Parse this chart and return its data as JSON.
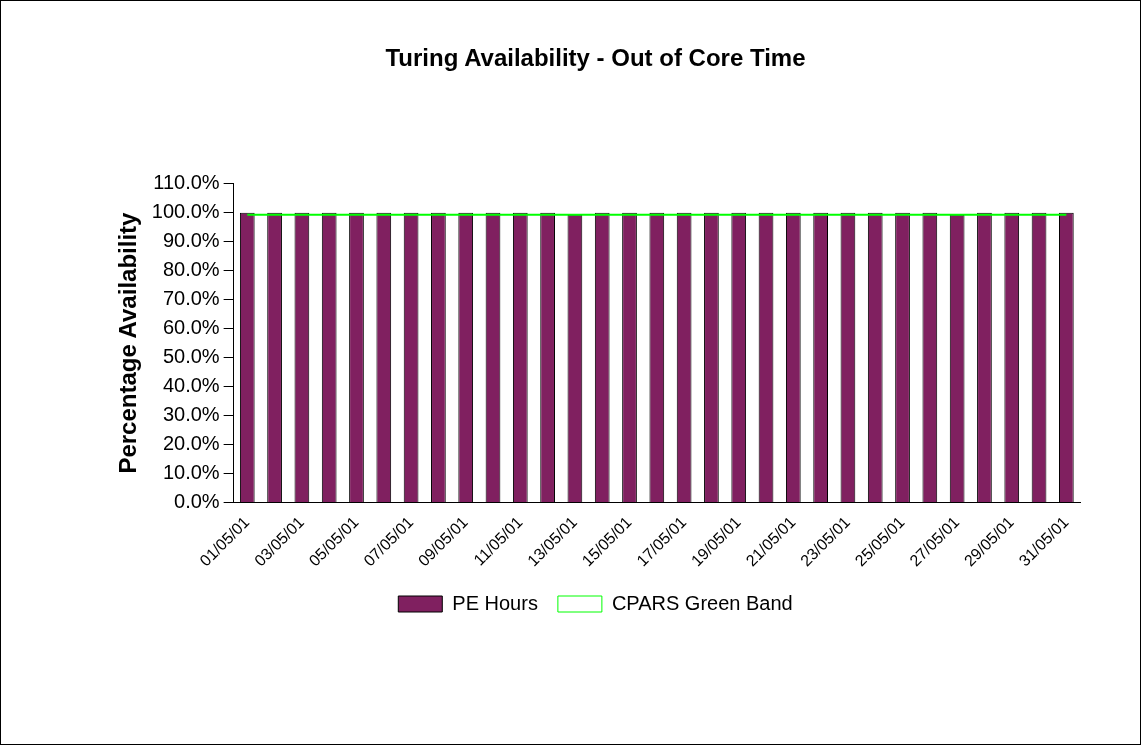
{
  "chart_data": {
    "type": "bar",
    "title": "Turing Availability - Out of Core Time",
    "ylabel": "Percentage Availability",
    "categories": [
      "01/05/01",
      null,
      "03/05/01",
      null,
      "05/05/01",
      null,
      "07/05/01",
      null,
      "09/05/01",
      null,
      "11/05/01",
      null,
      "13/05/01",
      null,
      "15/05/01",
      null,
      "17/05/01",
      null,
      "19/05/01",
      null,
      "21/05/01",
      null,
      "23/05/01",
      null,
      "25/05/01",
      null,
      "27/05/01",
      null,
      "29/05/01",
      null,
      "31/05/01"
    ],
    "series": [
      {
        "name": "PE Hours",
        "color": "#802060",
        "values": [
          100,
          100,
          100,
          100,
          100,
          100,
          100,
          100,
          100,
          100,
          100,
          100,
          99.3,
          100,
          100,
          100,
          100,
          100,
          100,
          100,
          100,
          100,
          100,
          100,
          100,
          100,
          99.3,
          100,
          100,
          100,
          100
        ]
      },
      {
        "name": "CPARS Green Band",
        "type": "line",
        "color": "#00ff00",
        "values": [
          99.3,
          99.3,
          99.3,
          99.3,
          99.3,
          99.3,
          99.3,
          99.3,
          99.3,
          99.3,
          99.3,
          99.3,
          99.3,
          99.3,
          99.3,
          99.3,
          99.3,
          99.3,
          99.3,
          99.3,
          99.3,
          99.3,
          99.3,
          99.3,
          99.3,
          99.3,
          99.3,
          99.3,
          99.3,
          99.3,
          99.3
        ]
      }
    ],
    "ylim": [
      0,
      110
    ],
    "yticks": [
      {
        "value": 0,
        "label": "0.0%"
      },
      {
        "value": 10,
        "label": "10.0%"
      },
      {
        "value": 20,
        "label": "20.0%"
      },
      {
        "value": 30,
        "label": "30.0%"
      },
      {
        "value": 40,
        "label": "40.0%"
      },
      {
        "value": 50,
        "label": "50.0%"
      },
      {
        "value": 60,
        "label": "60.0%"
      },
      {
        "value": 70,
        "label": "70.0%"
      },
      {
        "value": 80,
        "label": "80.0%"
      },
      {
        "value": 90,
        "label": "90.0%"
      },
      {
        "value": 100,
        "label": "100.0%"
      },
      {
        "value": 110,
        "label": "110.0%"
      }
    ],
    "grid": false,
    "legend": "bottom",
    "marker": "none",
    "line_style": "solid"
  }
}
